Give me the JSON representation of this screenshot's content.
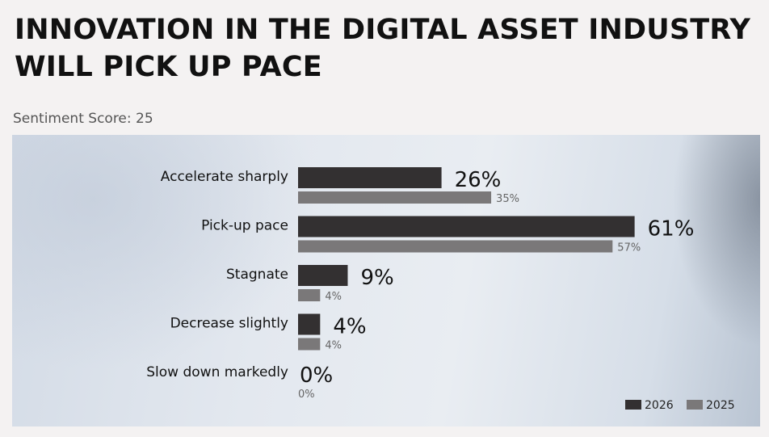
{
  "title": "INNOVATION IN THE DIGITAL ASSET INDUSTRY WILL PICK UP PACE",
  "subtitle": "Sentiment Score: 25",
  "chart_data": {
    "type": "bar",
    "orientation": "horizontal",
    "categories": [
      "Accelerate sharply",
      "Pick-up pace",
      "Stagnate",
      "Decrease slightly",
      "Slow down markedly"
    ],
    "series": [
      {
        "name": "2026",
        "values": [
          26,
          61,
          9,
          4,
          0
        ],
        "labels": [
          "26%",
          "61%",
          "9%",
          "4%",
          "0%"
        ],
        "color": "#333031"
      },
      {
        "name": "2025",
        "values": [
          35,
          57,
          4,
          4,
          0
        ],
        "labels": [
          "35%",
          "57%",
          "4%",
          "4%",
          "0%"
        ],
        "color": "#7a7879"
      }
    ],
    "unit": "%",
    "xlim": [
      0,
      100
    ],
    "grid": false,
    "legend": "bottom-right"
  }
}
